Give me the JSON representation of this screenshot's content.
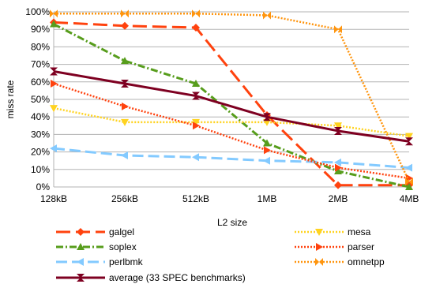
{
  "chart_data": {
    "type": "line",
    "title": "",
    "xlabel": "L2 size",
    "ylabel": "miss rate",
    "categories": [
      "128kB",
      "256kB",
      "512kB",
      "1MB",
      "2MB",
      "4MB"
    ],
    "yticks": [
      "0%",
      "10%",
      "20%",
      "30%",
      "40%",
      "50%",
      "60%",
      "70%",
      "80%",
      "90%",
      "100%"
    ],
    "ylim": [
      0,
      100
    ],
    "grid": "horizontal",
    "legend_position": "bottom",
    "series": [
      {
        "name": "galgel",
        "color": "#ff420e",
        "dash": "18,7",
        "width": 3,
        "marker": "diamond",
        "markerColor": "#ff420e",
        "values": [
          94,
          92,
          91,
          41,
          1,
          1
        ]
      },
      {
        "name": "soplex",
        "color": "#579d1c",
        "dash": "9,3,2,3",
        "width": 3,
        "marker": "triangle-up",
        "markerColor": "#579d1c",
        "values": [
          93,
          72,
          59,
          25,
          9,
          0
        ]
      },
      {
        "name": "perlbmk",
        "color": "#83caff",
        "dash": "14,6",
        "width": 3,
        "marker": "triangle-left",
        "markerColor": "#83caff",
        "values": [
          22,
          18,
          17,
          15,
          14,
          11
        ]
      },
      {
        "name": "mesa",
        "color": "#ffd320",
        "dash": "2,2",
        "width": 2.5,
        "marker": "triangle-down",
        "markerColor": "#ffd320",
        "values": [
          45,
          37,
          37,
          37,
          35,
          29
        ]
      },
      {
        "name": "parser",
        "color": "#ff420e",
        "dash": "2,2",
        "width": 2.5,
        "marker": "triangle-right",
        "markerColor": "#ff420e",
        "values": [
          59,
          46,
          35,
          21,
          11,
          5
        ]
      },
      {
        "name": "omnetpp",
        "color": "#ff950e",
        "dash": "2,2",
        "width": 2.5,
        "marker": "bowtie",
        "markerColor": "#ff950e",
        "values": [
          99,
          99,
          99,
          98,
          90,
          3
        ]
      },
      {
        "name": "average (33 SPEC benchmarks)",
        "color": "#7e0021",
        "dash": "",
        "width": 3,
        "marker": "hourglass",
        "markerColor": "#7e0021",
        "values": [
          66,
          59,
          52,
          40,
          32,
          26
        ]
      }
    ]
  }
}
